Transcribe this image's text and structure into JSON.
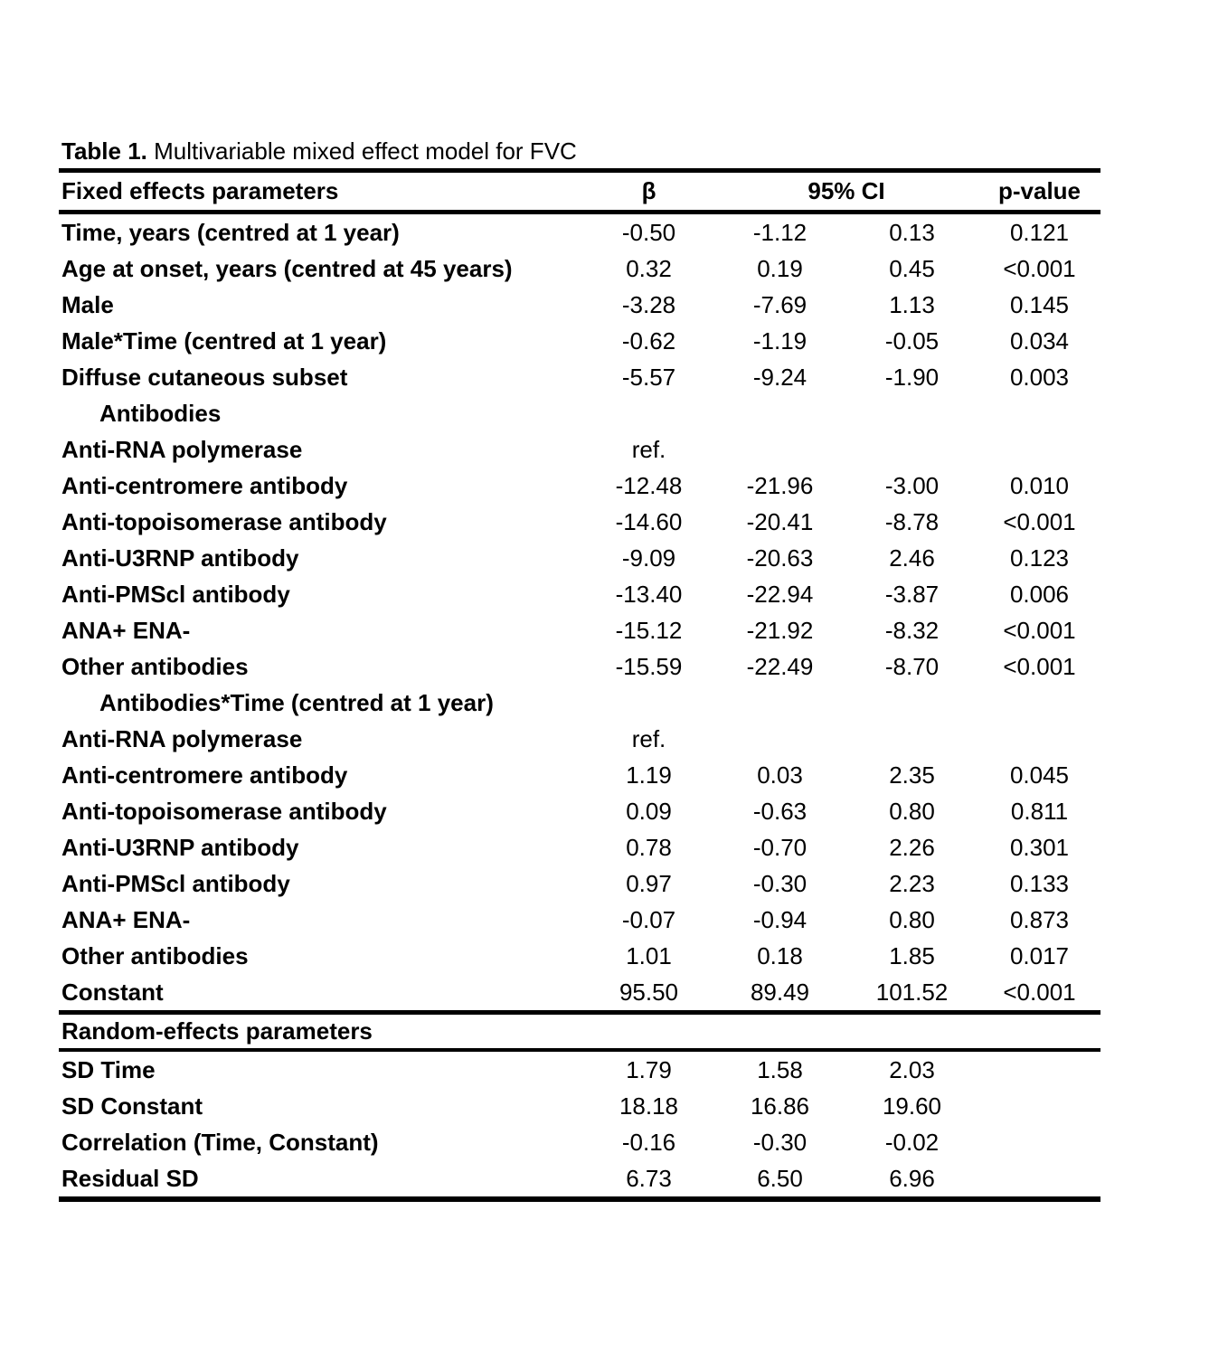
{
  "page": {
    "background": "#ffffff",
    "text_color": "#000000"
  },
  "title": {
    "prefix": "Table 1.",
    "text": " Multivariable mixed effect model for FVC"
  },
  "columns": {
    "label": "Fixed effects parameters",
    "beta": "β",
    "ci": "95% CI",
    "p": "p-value"
  },
  "fixed_effects": {
    "rows": [
      {
        "label": "Time, years (centred at 1 year)",
        "beta": "-0.50",
        "ci_low": "-1.12",
        "ci_high": "0.13",
        "p": "0.121"
      },
      {
        "label": "Age at onset, years (centred at 45 years)",
        "beta": "0.32",
        "ci_low": "0.19",
        "ci_high": "0.45",
        "p": "<0.001"
      },
      {
        "label": "Male",
        "beta": "-3.28",
        "ci_low": "-7.69",
        "ci_high": "1.13",
        "p": "0.145"
      },
      {
        "label": "Male*Time (centred at 1 year)",
        "beta": "-0.62",
        "ci_low": "-1.19",
        "ci_high": "-0.05",
        "p": "0.034"
      },
      {
        "label": "Diffuse cutaneous subset",
        "beta": "-5.57",
        "ci_low": "-9.24",
        "ci_high": "-1.90",
        "p": "0.003"
      },
      {
        "label": "Antibodies",
        "subheader": true
      },
      {
        "label": "Anti-RNA polymerase",
        "beta": "ref."
      },
      {
        "label": "Anti-centromere antibody",
        "beta": "-12.48",
        "ci_low": "-21.96",
        "ci_high": "-3.00",
        "p": "0.010"
      },
      {
        "label": "Anti-topoisomerase antibody",
        "beta": "-14.60",
        "ci_low": "-20.41",
        "ci_high": "-8.78",
        "p": "<0.001"
      },
      {
        "label": "Anti-U3RNP antibody",
        "beta": "-9.09",
        "ci_low": "-20.63",
        "ci_high": "2.46",
        "p": "0.123"
      },
      {
        "label": "Anti-PMScl antibody",
        "beta": "-13.40",
        "ci_low": "-22.94",
        "ci_high": "-3.87",
        "p": "0.006"
      },
      {
        "label": "ANA+ ENA-",
        "beta": "-15.12",
        "ci_low": "-21.92",
        "ci_high": "-8.32",
        "p": "<0.001"
      },
      {
        "label": "Other antibodies",
        "beta": "-15.59",
        "ci_low": "-22.49",
        "ci_high": "-8.70",
        "p": "<0.001"
      },
      {
        "label": "Antibodies*Time (centred at 1 year)",
        "subheader": true
      },
      {
        "label": "Anti-RNA polymerase",
        "beta": "ref."
      },
      {
        "label": "Anti-centromere antibody",
        "beta": "1.19",
        "ci_low": "0.03",
        "ci_high": "2.35",
        "p": "0.045"
      },
      {
        "label": "Anti-topoisomerase antibody",
        "beta": "0.09",
        "ci_low": "-0.63",
        "ci_high": "0.80",
        "p": "0.811"
      },
      {
        "label": "Anti-U3RNP antibody",
        "beta": "0.78",
        "ci_low": "-0.70",
        "ci_high": "2.26",
        "p": "0.301"
      },
      {
        "label": "Anti-PMScl antibody",
        "beta": "0.97",
        "ci_low": "-0.30",
        "ci_high": "2.23",
        "p": "0.133"
      },
      {
        "label": "ANA+ ENA-",
        "beta": "-0.07",
        "ci_low": "-0.94",
        "ci_high": "0.80",
        "p": "0.873"
      },
      {
        "label": "Other antibodies",
        "beta": "1.01",
        "ci_low": "0.18",
        "ci_high": "1.85",
        "p": "0.017"
      },
      {
        "label": "Constant",
        "beta": "95.50",
        "ci_low": "89.49",
        "ci_high": "101.52",
        "p": "<0.001"
      }
    ]
  },
  "random_effects": {
    "header": "Random-effects parameters",
    "rows": [
      {
        "label": "SD Time",
        "beta": "1.79",
        "ci_low": "1.58",
        "ci_high": "2.03"
      },
      {
        "label": "SD Constant",
        "beta": "18.18",
        "ci_low": "16.86",
        "ci_high": "19.60"
      },
      {
        "label": "Correlation (Time, Constant)",
        "beta": "-0.16",
        "ci_low": "-0.30",
        "ci_high": "-0.02"
      },
      {
        "label": "Residual SD",
        "beta": "6.73",
        "ci_low": "6.50",
        "ci_high": "6.96"
      }
    ]
  }
}
